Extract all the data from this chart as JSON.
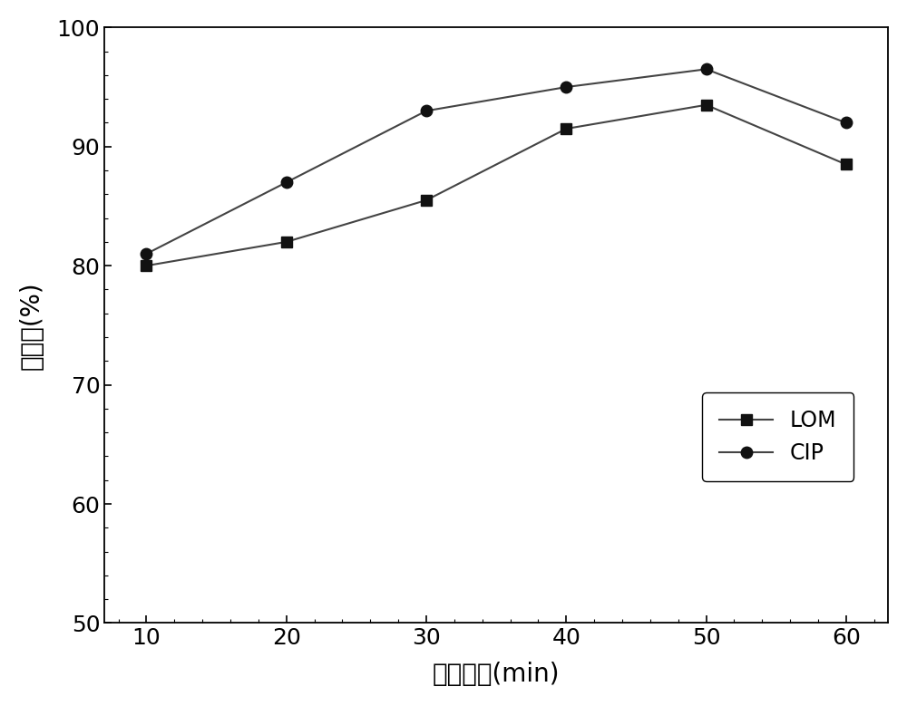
{
  "x": [
    10,
    20,
    30,
    40,
    50,
    60
  ],
  "LOM_y": [
    80.0,
    82.0,
    85.5,
    91.5,
    93.5,
    88.5
  ],
  "CIP_y": [
    81.0,
    87.0,
    93.0,
    95.0,
    96.5,
    92.0
  ],
  "xlabel": "浮选时间(min)",
  "ylabel": "浮选率(%)",
  "xlim": [
    7,
    63
  ],
  "ylim": [
    50,
    100
  ],
  "yticks": [
    50,
    60,
    70,
    80,
    90,
    100
  ],
  "xticks": [
    10,
    20,
    30,
    40,
    50,
    60
  ],
  "line_color": "#444444",
  "marker_LOM": "s",
  "marker_CIP": "o",
  "marker_size": 9,
  "marker_fill": "#111111",
  "legend_LOM": "LOM",
  "legend_CIP": "CIP",
  "background_color": "#ffffff",
  "label_fontsize": 20,
  "tick_fontsize": 18,
  "legend_fontsize": 17
}
